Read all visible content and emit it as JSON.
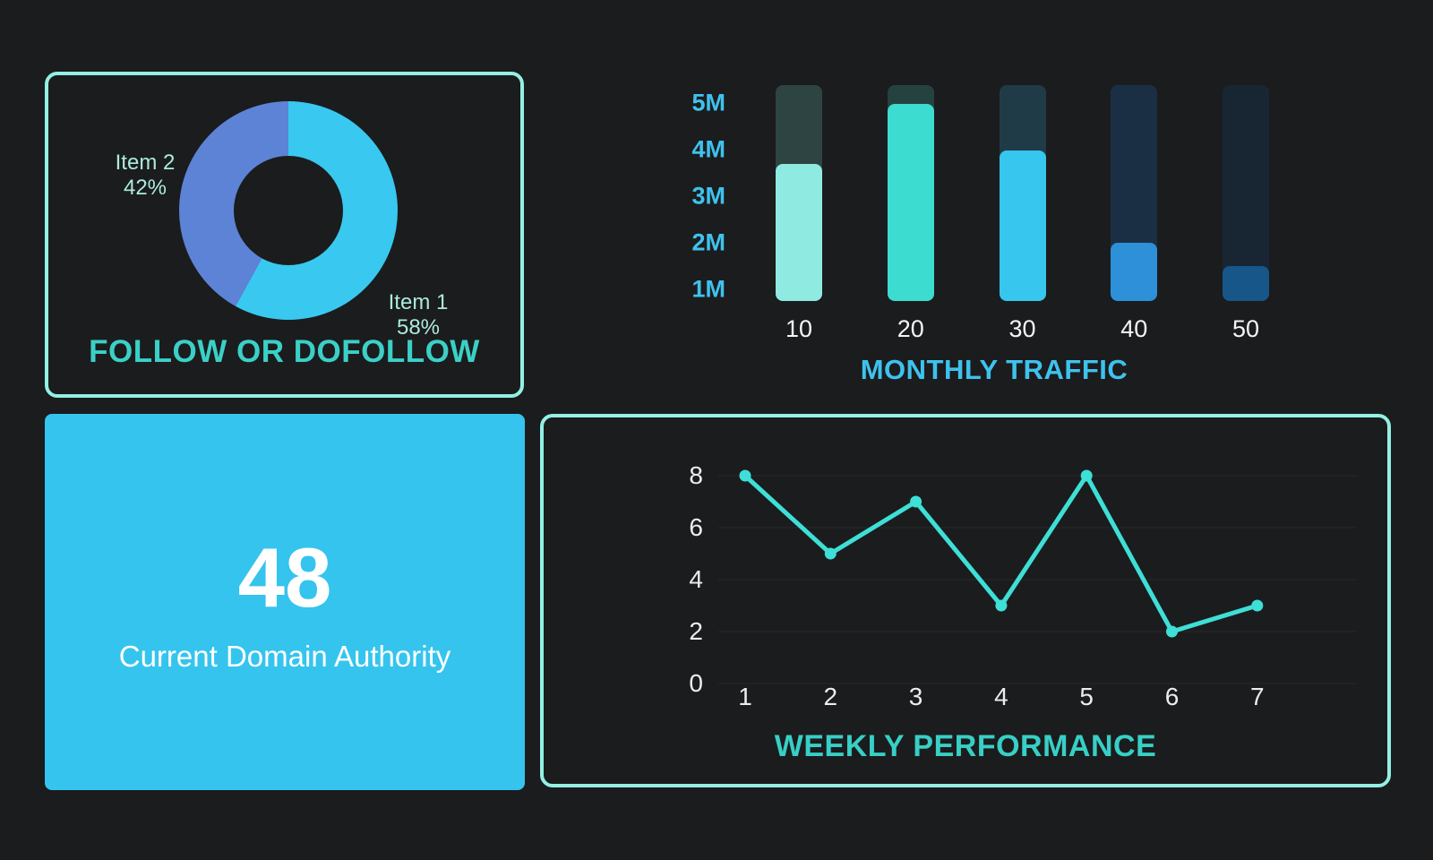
{
  "kpi_card": {
    "value": "48",
    "label": "Current Domain Authority",
    "bg_color": "#35c4ee"
  },
  "page": {
    "background": "#1b1c1d",
    "card_border_color": "#94efe4"
  },
  "chart_data": [
    {
      "id": "follow-donut",
      "type": "pie",
      "title": "FOLLOW OR DOFOLLOW",
      "title_color": "#3bd0c7",
      "label_color": "#aceade",
      "legend_position": "around-chart",
      "slices": [
        {
          "label": "Item 1",
          "value_pct": 58,
          "pct_text": "58%",
          "color": "#39c8f0"
        },
        {
          "label": "Item 2",
          "value_pct": 42,
          "pct_text": "42%",
          "color": "#5d83d6"
        }
      ]
    },
    {
      "id": "monthly-traffic",
      "type": "bar",
      "title": "MONTHLY TRAFFIC",
      "title_color": "#3ec2ee",
      "categories": [
        "10",
        "20",
        "30",
        "40",
        "50"
      ],
      "values_millions": [
        3.7,
        5,
        4,
        2,
        1.5
      ],
      "y_ticks": [
        "5M",
        "4M",
        "3M",
        "2M",
        "1M"
      ],
      "y_tick_color": "#3fc2ee",
      "x_label_color": "#f5f5f5",
      "axis_range_millions": [
        0.75,
        5.4
      ],
      "grid": false,
      "bar_colors": [
        "#8feae1",
        "#3cdcd1",
        "#37c6ee",
        "#2e90d8",
        "#175689"
      ],
      "track_colors": [
        "#2d4442",
        "#254140",
        "#1f3b47",
        "#1b2f44",
        "#182634"
      ]
    },
    {
      "id": "weekly-performance",
      "type": "line",
      "title": "WEEKLY PERFORMANCE",
      "title_color": "#37cfc6",
      "x": [
        1,
        2,
        3,
        4,
        5,
        6,
        7
      ],
      "values": [
        8,
        5,
        7,
        3,
        8,
        2,
        3
      ],
      "y_ticks": [
        8,
        6,
        4,
        2,
        0
      ],
      "ylim": [
        0,
        8
      ],
      "grid": true,
      "grid_color": "#232526",
      "line_color": "#3edfd7",
      "marker": "circle",
      "tick_color": "#ececec"
    }
  ]
}
